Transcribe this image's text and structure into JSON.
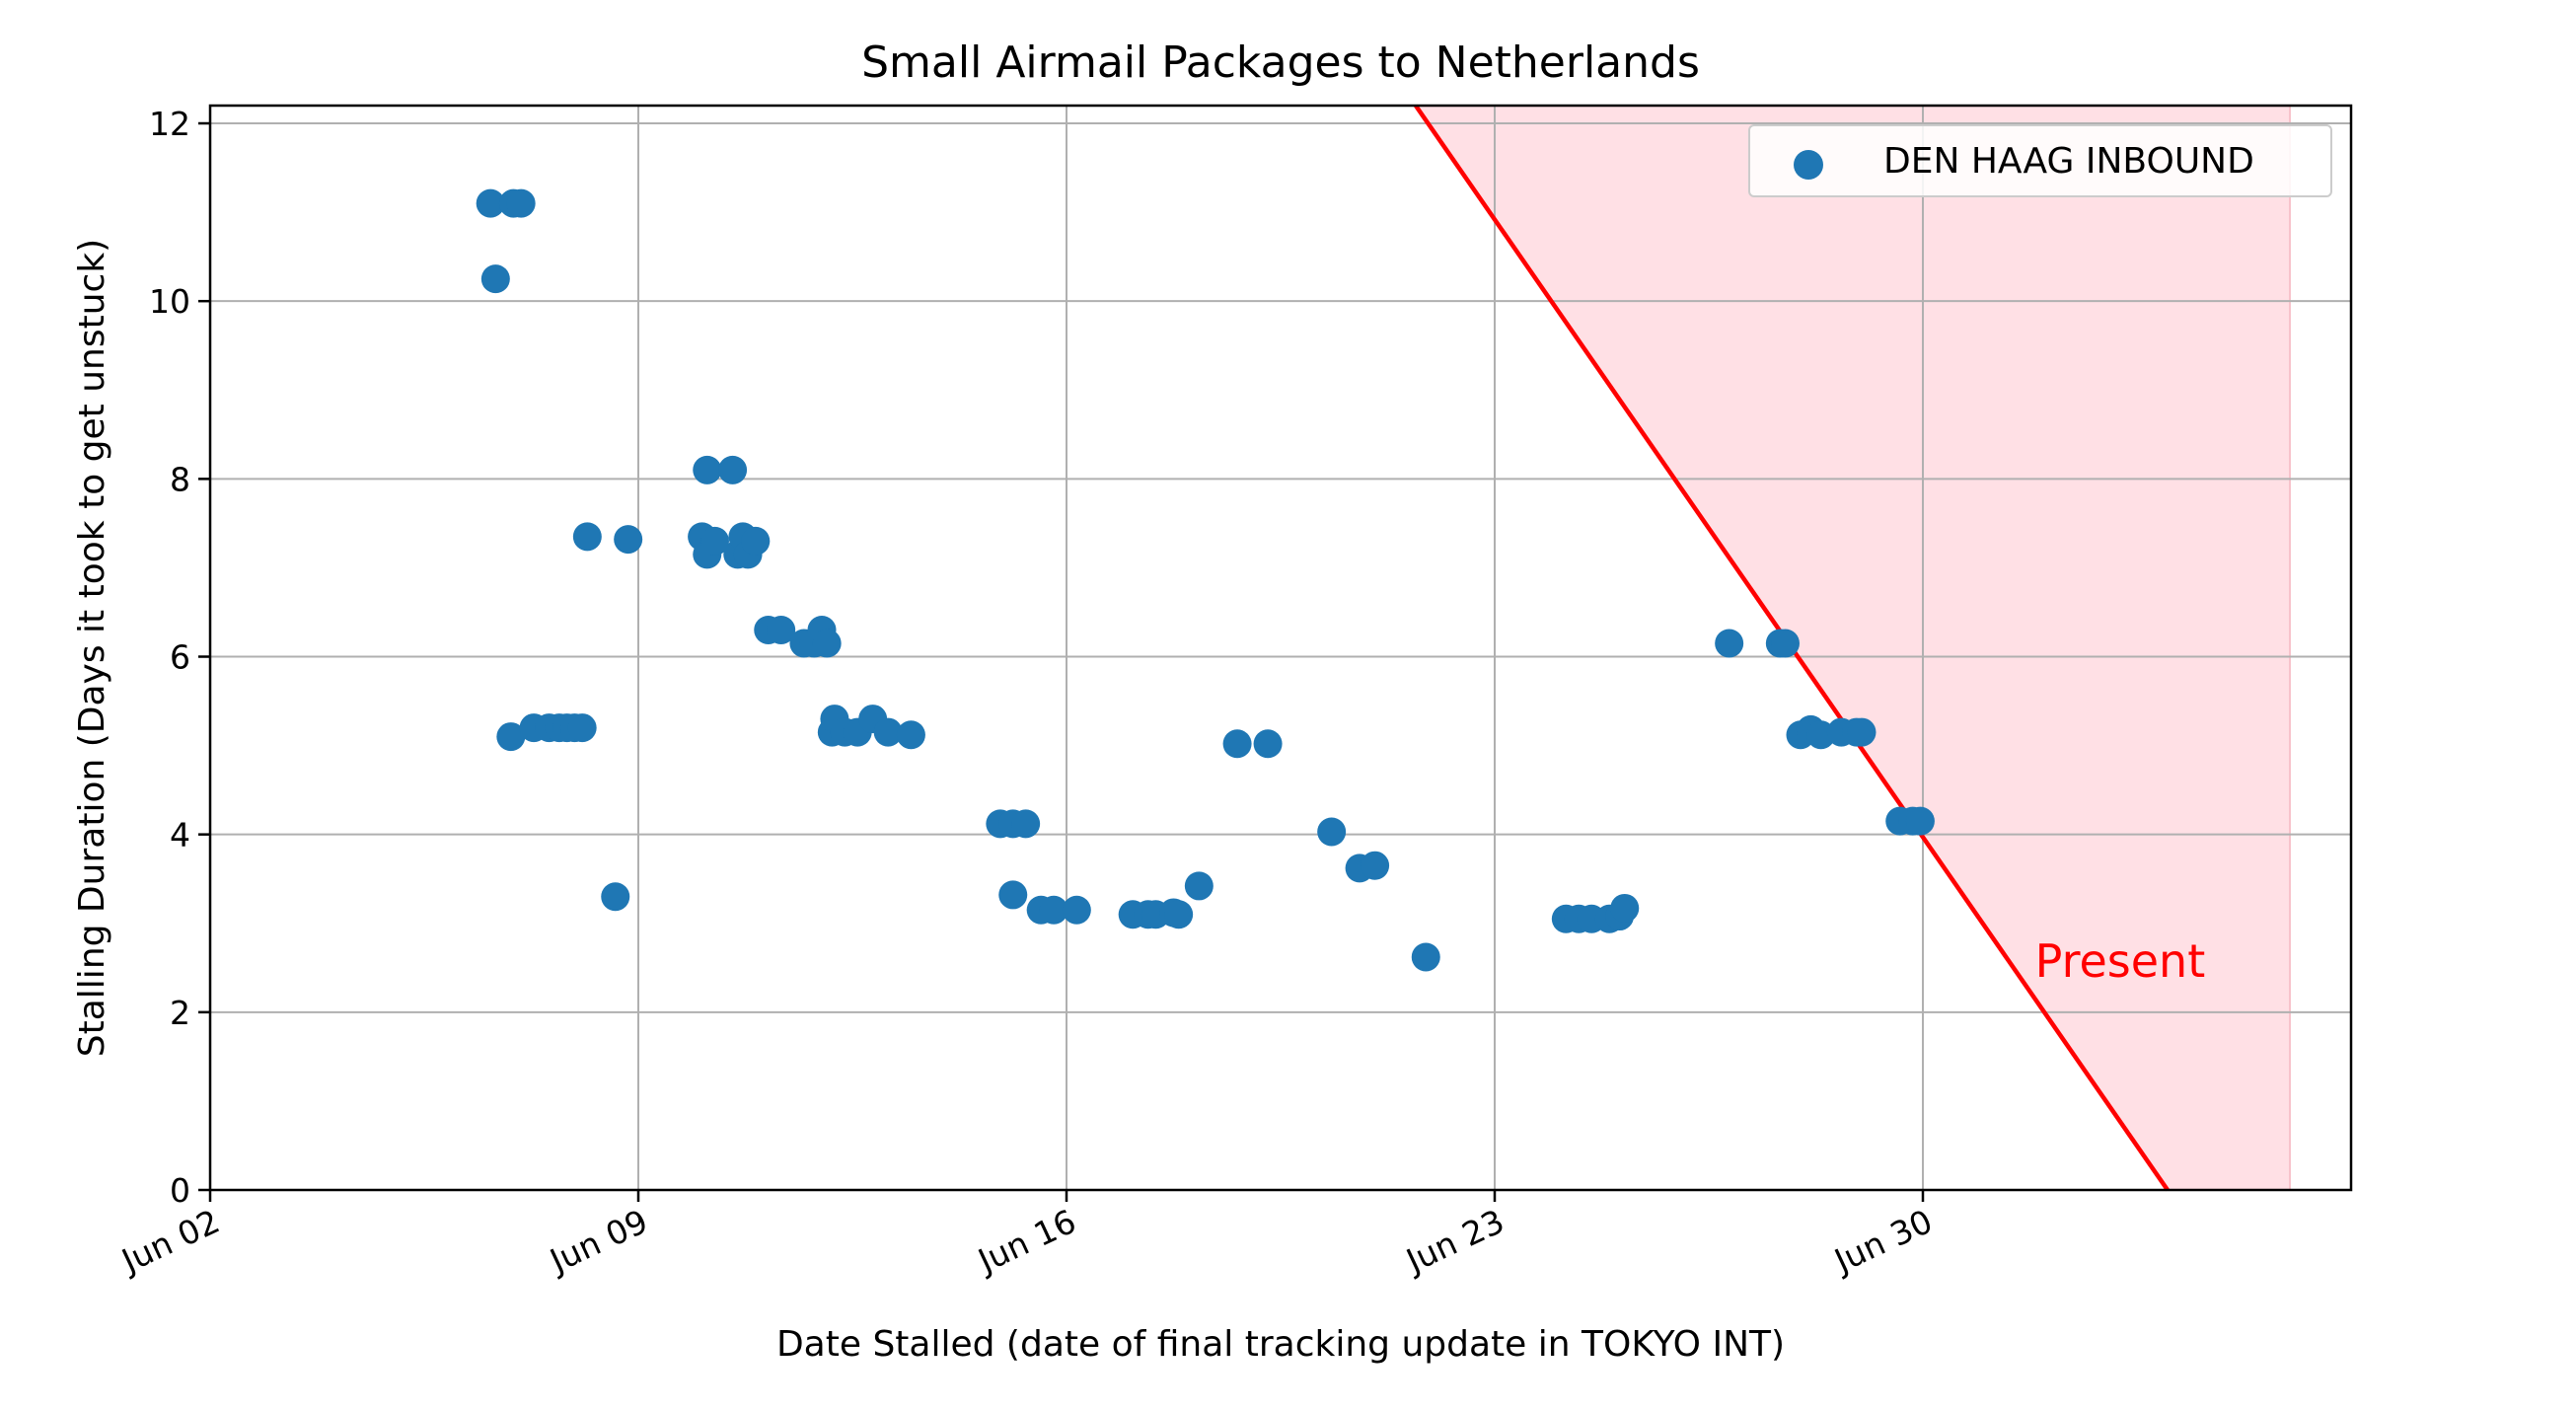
{
  "chart_data": {
    "type": "scatter",
    "title": "Small Airmail Packages to Netherlands",
    "xlabel": "Date Stalled (date of final tracking update in TOKYO INT)",
    "ylabel": "Stalling Duration (Days it took to get unstuck)",
    "x_is_date": true,
    "year": 2023,
    "xlim": [
      "2023-06-02T00:00",
      "2023-07-07T00:00"
    ],
    "ylim": [
      0,
      12.2
    ],
    "x_ticks": [
      "Jun 02",
      "Jun 09",
      "Jun 16",
      "Jun 23",
      "Jun 30"
    ],
    "y_ticks": [
      0,
      2,
      4,
      6,
      8,
      10,
      12
    ],
    "grid": true,
    "legend_position": "top-right",
    "colors": {
      "series": "#1f77b4",
      "present_line": "#ff0000",
      "present_fill": "#ffdde2"
    },
    "series": [
      {
        "name": "DEN HAAG INBOUND",
        "points": [
          {
            "x": "2023-06-06T14:00",
            "y": 11.1
          },
          {
            "x": "2023-06-06T16:00",
            "y": 10.25
          },
          {
            "x": "2023-06-06T23:00",
            "y": 11.1
          },
          {
            "x": "2023-06-07T02:00",
            "y": 11.1
          },
          {
            "x": "2023-06-06T22:00",
            "y": 5.1
          },
          {
            "x": "2023-06-07T07:00",
            "y": 5.2
          },
          {
            "x": "2023-06-07T13:00",
            "y": 5.2
          },
          {
            "x": "2023-06-07T17:00",
            "y": 5.2
          },
          {
            "x": "2023-06-07T20:00",
            "y": 5.2
          },
          {
            "x": "2023-06-07T23:00",
            "y": 5.2
          },
          {
            "x": "2023-06-08T02:00",
            "y": 5.2
          },
          {
            "x": "2023-06-08T04:00",
            "y": 7.35
          },
          {
            "x": "2023-06-08T15:00",
            "y": 3.3
          },
          {
            "x": "2023-06-08T20:00",
            "y": 7.32
          },
          {
            "x": "2023-06-10T03:00",
            "y": 8.1
          },
          {
            "x": "2023-06-10T13:00",
            "y": 8.1
          },
          {
            "x": "2023-06-10T01:00",
            "y": 7.35
          },
          {
            "x": "2023-06-10T03:00",
            "y": 7.15
          },
          {
            "x": "2023-06-10T06:00",
            "y": 7.3
          },
          {
            "x": "2023-06-10T15:00",
            "y": 7.15
          },
          {
            "x": "2023-06-10T17:00",
            "y": 7.35
          },
          {
            "x": "2023-06-10T19:00",
            "y": 7.15
          },
          {
            "x": "2023-06-10T22:00",
            "y": 7.3
          },
          {
            "x": "2023-06-11T03:00",
            "y": 6.3
          },
          {
            "x": "2023-06-11T08:00",
            "y": 6.3
          },
          {
            "x": "2023-06-11T17:00",
            "y": 6.15
          },
          {
            "x": "2023-06-11T21:00",
            "y": 6.15
          },
          {
            "x": "2023-06-12T00:00",
            "y": 6.3
          },
          {
            "x": "2023-06-12T02:00",
            "y": 6.15
          },
          {
            "x": "2023-06-12T04:00",
            "y": 5.15
          },
          {
            "x": "2023-06-12T05:00",
            "y": 5.3
          },
          {
            "x": "2023-06-12T09:00",
            "y": 5.15
          },
          {
            "x": "2023-06-12T14:00",
            "y": 5.15
          },
          {
            "x": "2023-06-12T20:00",
            "y": 5.3
          },
          {
            "x": "2023-06-13T02:00",
            "y": 5.15
          },
          {
            "x": "2023-06-13T11:00",
            "y": 5.12
          },
          {
            "x": "2023-06-14T22:00",
            "y": 4.12
          },
          {
            "x": "2023-06-15T03:00",
            "y": 4.12
          },
          {
            "x": "2023-06-15T08:00",
            "y": 4.12
          },
          {
            "x": "2023-06-15T03:00",
            "y": 3.32
          },
          {
            "x": "2023-06-15T14:00",
            "y": 3.15
          },
          {
            "x": "2023-06-15T19:00",
            "y": 3.15
          },
          {
            "x": "2023-06-16T04:00",
            "y": 3.15
          },
          {
            "x": "2023-06-17T02:00",
            "y": 3.1
          },
          {
            "x": "2023-06-17T08:00",
            "y": 3.1
          },
          {
            "x": "2023-06-17T11:00",
            "y": 3.1
          },
          {
            "x": "2023-06-17T18:00",
            "y": 3.12
          },
          {
            "x": "2023-06-17T20:00",
            "y": 3.1
          },
          {
            "x": "2023-06-18T04:00",
            "y": 3.42
          },
          {
            "x": "2023-06-18T19:00",
            "y": 5.02
          },
          {
            "x": "2023-06-19T07:00",
            "y": 5.02
          },
          {
            "x": "2023-06-20T08:00",
            "y": 4.03
          },
          {
            "x": "2023-06-20T19:00",
            "y": 3.62
          },
          {
            "x": "2023-06-21T01:00",
            "y": 3.65
          },
          {
            "x": "2023-06-21T21:00",
            "y": 2.62
          },
          {
            "x": "2023-06-24T04:00",
            "y": 3.05
          },
          {
            "x": "2023-06-24T09:00",
            "y": 3.05
          },
          {
            "x": "2023-06-24T14:00",
            "y": 3.05
          },
          {
            "x": "2023-06-24T21:00",
            "y": 3.05
          },
          {
            "x": "2023-06-25T01:00",
            "y": 3.08
          },
          {
            "x": "2023-06-25T03:00",
            "y": 3.17
          },
          {
            "x": "2023-06-26T20:00",
            "y": 6.15
          },
          {
            "x": "2023-06-27T16:00",
            "y": 6.15
          },
          {
            "x": "2023-06-27T18:00",
            "y": 6.15
          },
          {
            "x": "2023-06-28T00:00",
            "y": 5.12
          },
          {
            "x": "2023-06-28T04:00",
            "y": 5.18
          },
          {
            "x": "2023-06-28T08:00",
            "y": 5.12
          },
          {
            "x": "2023-06-28T16:00",
            "y": 5.15
          },
          {
            "x": "2023-06-28T22:00",
            "y": 5.15
          },
          {
            "x": "2023-06-29T00:00",
            "y": 5.15
          },
          {
            "x": "2023-06-29T15:00",
            "y": 4.15
          },
          {
            "x": "2023-06-29T20:00",
            "y": 4.15
          },
          {
            "x": "2023-06-29T23:00",
            "y": 4.15
          }
        ]
      }
    ],
    "present_line": {
      "points": [
        {
          "x": "2023-06-21T17:00",
          "y": 12.2
        },
        {
          "x": "2023-07-04T00:00",
          "y": 0
        }
      ],
      "fill_end": "2023-07-06T00:00"
    },
    "annotations": [
      {
        "text": "Present",
        "x": "2023-07-01T20:00",
        "y": 2.4
      }
    ]
  }
}
